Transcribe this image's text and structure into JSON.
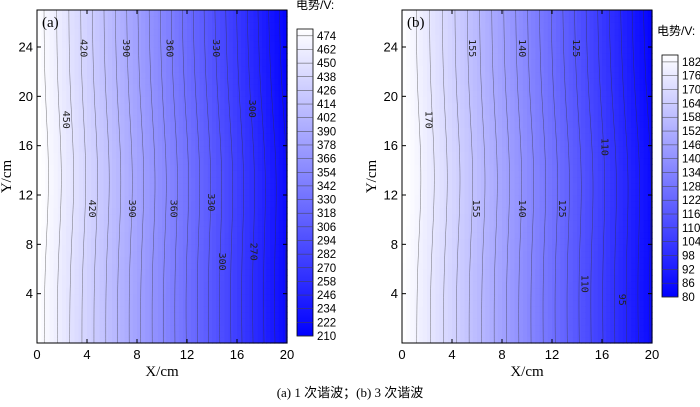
{
  "caption": "(a) 1 次谐波；(b) 3 次谐波",
  "chart_data": [
    {
      "type": "heatmap",
      "panel_label": "(a)",
      "xlabel": "X/cm",
      "ylabel": "Y/cm",
      "xlim": [
        0,
        20
      ],
      "ylim": [
        0,
        27
      ],
      "xticks": [
        0,
        4,
        8,
        12,
        16,
        20
      ],
      "yticks": [
        4,
        8,
        12,
        16,
        20,
        24
      ],
      "colorbar_title": "电势/V:",
      "colorbar_range": [
        210,
        480
      ],
      "colorbar_ticks": [
        474,
        462,
        450,
        438,
        426,
        414,
        402,
        390,
        378,
        366,
        354,
        342,
        330,
        318,
        306,
        294,
        282,
        270,
        258,
        246,
        234,
        222,
        210
      ],
      "value_range": [
        210,
        480
      ],
      "contour_step": 12,
      "contour_labels": [
        {
          "text": "420",
          "x": 3.7,
          "y": 23.9
        },
        {
          "text": "390",
          "x": 7.1,
          "y": 23.9
        },
        {
          "text": "360",
          "x": 10.6,
          "y": 23.9
        },
        {
          "text": "330",
          "x": 14.3,
          "y": 23.9
        },
        {
          "text": "450",
          "x": 2.3,
          "y": 18.1
        },
        {
          "text": "300",
          "x": 17.2,
          "y": 19.0
        },
        {
          "text": "420",
          "x": 4.4,
          "y": 10.9
        },
        {
          "text": "390",
          "x": 7.6,
          "y": 10.9
        },
        {
          "text": "360",
          "x": 10.9,
          "y": 10.9
        },
        {
          "text": "330",
          "x": 13.9,
          "y": 11.4
        },
        {
          "text": "300",
          "x": 14.8,
          "y": 6.6
        },
        {
          "text": "270",
          "x": 17.3,
          "y": 7.4
        }
      ],
      "colors": {
        "low": "#0000ff",
        "high": "#ffffff"
      }
    },
    {
      "type": "heatmap",
      "panel_label": "(b)",
      "xlabel": "X/cm",
      "ylabel": "Y/cm",
      "xlim": [
        0,
        20
      ],
      "ylim": [
        0,
        27
      ],
      "xticks": [
        0,
        4,
        8,
        12,
        16,
        20
      ],
      "yticks": [
        4,
        8,
        12,
        16,
        20,
        24
      ],
      "colorbar_title": "电势/V:",
      "colorbar_range": [
        80,
        185
      ],
      "colorbar_ticks": [
        182,
        176,
        170,
        164,
        158,
        152,
        146,
        140,
        134,
        128,
        122,
        116,
        110,
        104,
        98,
        92,
        86,
        80
      ],
      "value_range": [
        80,
        185
      ],
      "contour_step": 5,
      "contour_labels": [
        {
          "text": "155",
          "x": 5.6,
          "y": 23.9
        },
        {
          "text": "140",
          "x": 9.6,
          "y": 23.9
        },
        {
          "text": "125",
          "x": 13.9,
          "y": 23.9
        },
        {
          "text": "170",
          "x": 2.1,
          "y": 18.1
        },
        {
          "text": "110",
          "x": 16.2,
          "y": 15.9
        },
        {
          "text": "155",
          "x": 5.9,
          "y": 10.9
        },
        {
          "text": "140",
          "x": 9.6,
          "y": 10.9
        },
        {
          "text": "125",
          "x": 12.8,
          "y": 10.9
        },
        {
          "text": "110",
          "x": 14.6,
          "y": 4.8
        },
        {
          "text": "95",
          "x": 17.6,
          "y": 3.5
        }
      ],
      "colors": {
        "low": "#0000ff",
        "high": "#ffffff"
      }
    }
  ]
}
